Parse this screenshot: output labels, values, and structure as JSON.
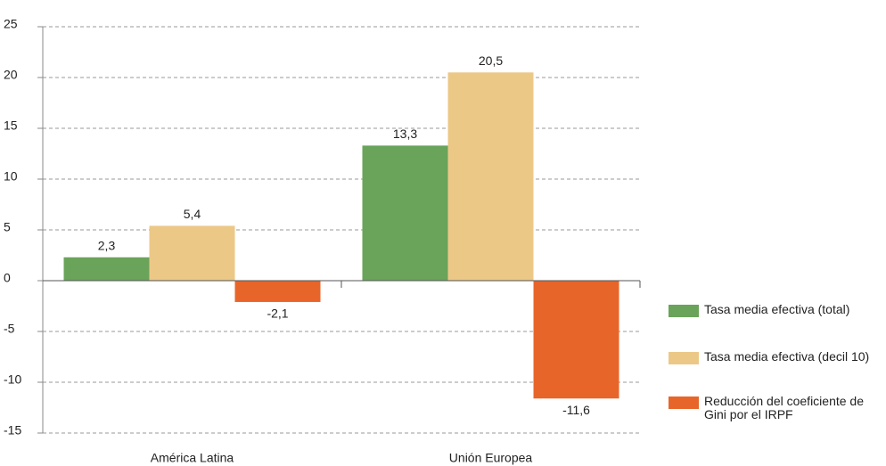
{
  "chart_data": {
    "type": "bar",
    "categories": [
      "América Latina",
      "Unión Europea"
    ],
    "series": [
      {
        "name": "Tasa media efectiva (total)",
        "color": "#6aa35a",
        "values": [
          2.3,
          13.3
        ],
        "value_labels": [
          "2,3",
          "13,3"
        ]
      },
      {
        "name": "Tasa media efectiva (decil 10)",
        "color": "#ecc887",
        "values": [
          5.4,
          20.5
        ],
        "value_labels": [
          "5,4",
          "20,5"
        ]
      },
      {
        "name": "Reducción del coeficiente de Gini por el IRPF",
        "color": "#e8652a",
        "values": [
          -2.1,
          -11.6
        ],
        "value_labels": [
          "-2,1",
          "-11,6"
        ]
      }
    ],
    "ylim": [
      -15,
      25
    ],
    "yticks": [
      -15,
      -10,
      -5,
      0,
      5,
      10,
      15,
      20,
      25
    ],
    "grid": true,
    "legend": "right"
  }
}
